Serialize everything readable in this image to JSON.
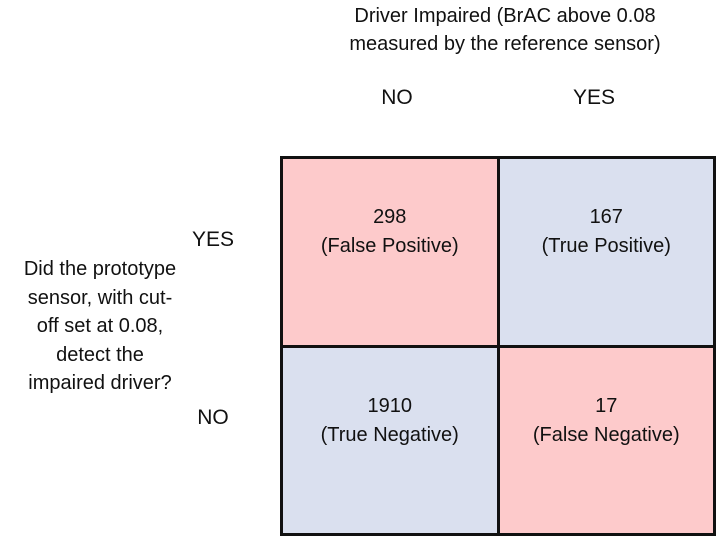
{
  "header": {
    "title_line1": "Driver Impaired (BrAC above 0.08",
    "title_line2": "measured by the reference sensor)"
  },
  "columns": [
    {
      "label": "NO"
    },
    {
      "label": "YES"
    }
  ],
  "rows": [
    {
      "label": "YES"
    },
    {
      "label": "NO"
    }
  ],
  "side_question": {
    "lines": [
      "Did the prototype",
      "sensor, with cut-",
      "off set at 0.08,",
      "detect the",
      "impaired driver?"
    ]
  },
  "matrix": {
    "cells": [
      {
        "count": "298",
        "kind": "(False Positive)",
        "fill": "#fdcacb"
      },
      {
        "count": "167",
        "kind": "(True Positive)",
        "fill": "#dae0ef"
      },
      {
        "count": "1910",
        "kind": "(True Negative)",
        "fill": "#dae0ef"
      },
      {
        "count": "17",
        "kind": "(False Negative)",
        "fill": "#fdcacb"
      }
    ]
  },
  "colors": {
    "false_fill": "#fdcacb",
    "true_fill": "#dae0ef",
    "grid_line": "#111111"
  }
}
